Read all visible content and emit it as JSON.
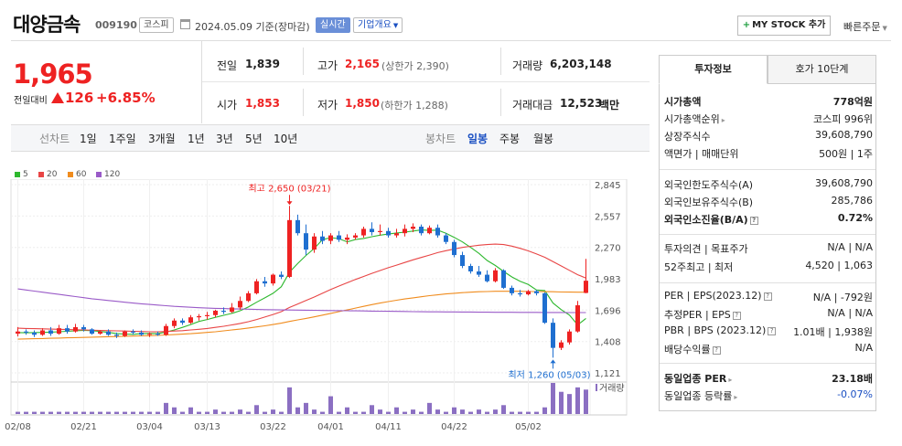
{
  "header": {
    "name": "대양금속",
    "code": "009190",
    "market": "코스피",
    "date": "2024.05.09 기준(장마감)",
    "realtime": "실시간",
    "company_info": "기업개요",
    "mystock": "MY STOCK 추가",
    "quick_order": "빠른주문"
  },
  "quote": {
    "price": "1,965",
    "change_label": "전일대비",
    "change": "126",
    "change_pct": "+6.85%",
    "prev_label": "전일",
    "prev": "1,839",
    "high_label": "고가",
    "high": "2,165",
    "upper_limit": "(상한가 2,390)",
    "volume_label": "거래량",
    "volume": "6,203,148",
    "open_label": "시가",
    "open": "1,853",
    "low_label": "저가",
    "low": "1,850",
    "lower_limit": "(하한가 1,288)",
    "amount_label": "거래대금",
    "amount": "12,523",
    "amount_unit": "백만"
  },
  "periods": {
    "line_label": "선차트",
    "line_items": [
      "1일",
      "1주일",
      "3개월",
      "1년",
      "3년",
      "5년",
      "10년"
    ],
    "candle_label": "봉차트",
    "candle_items": [
      "일봉",
      "주봉",
      "월봉"
    ],
    "selected": "일봉"
  },
  "legend": [
    {
      "name": "5",
      "color": "#2eb82e"
    },
    {
      "name": "20",
      "color": "#e84545"
    },
    {
      "name": "60",
      "color": "#f08c1e"
    },
    {
      "name": "120",
      "color": "#9a5bc8"
    }
  ],
  "chart_data": {
    "type": "candlestick",
    "y_ticks": [
      "2,845",
      "2,557",
      "2,270",
      "1,983",
      "1,696",
      "1,408",
      "1,121"
    ],
    "x_ticks": [
      "02/08",
      "02/21",
      "03/04",
      "03/13",
      "03/22",
      "04/01",
      "04/11",
      "04/22",
      "05/02"
    ],
    "high_annotation": "최고 2,650 (03/21)",
    "low_annotation": "최저 1,260 (05/03)",
    "volume_label": "거래량",
    "ylim": [
      1121,
      2845
    ],
    "candles": [
      [
        1480,
        1540,
        1455,
        1500
      ],
      [
        1500,
        1520,
        1470,
        1490
      ],
      [
        1490,
        1510,
        1450,
        1470
      ],
      [
        1470,
        1530,
        1460,
        1510
      ],
      [
        1510,
        1540,
        1460,
        1480
      ],
      [
        1480,
        1560,
        1470,
        1530
      ],
      [
        1530,
        1560,
        1480,
        1500
      ],
      [
        1500,
        1570,
        1490,
        1540
      ],
      [
        1540,
        1560,
        1500,
        1520
      ],
      [
        1520,
        1530,
        1470,
        1480
      ],
      [
        1480,
        1510,
        1470,
        1500
      ],
      [
        1500,
        1520,
        1460,
        1470
      ],
      [
        1470,
        1490,
        1440,
        1460
      ],
      [
        1460,
        1510,
        1450,
        1500
      ],
      [
        1500,
        1520,
        1470,
        1490
      ],
      [
        1490,
        1510,
        1460,
        1470
      ],
      [
        1470,
        1490,
        1450,
        1480
      ],
      [
        1480,
        1500,
        1460,
        1470
      ],
      [
        1470,
        1570,
        1460,
        1550
      ],
      [
        1550,
        1620,
        1530,
        1600
      ],
      [
        1600,
        1620,
        1560,
        1580
      ],
      [
        1580,
        1650,
        1570,
        1630
      ],
      [
        1630,
        1660,
        1600,
        1640
      ],
      [
        1640,
        1680,
        1610,
        1650
      ],
      [
        1650,
        1700,
        1630,
        1690
      ],
      [
        1690,
        1720,
        1660,
        1680
      ],
      [
        1680,
        1760,
        1670,
        1720
      ],
      [
        1720,
        1820,
        1700,
        1780
      ],
      [
        1780,
        1870,
        1770,
        1850
      ],
      [
        1850,
        1980,
        1840,
        1960
      ],
      [
        1960,
        2000,
        1910,
        1940
      ],
      [
        1940,
        2030,
        1920,
        2020
      ],
      [
        2020,
        2050,
        1980,
        2000
      ],
      [
        2000,
        2650,
        1990,
        2520
      ],
      [
        2520,
        2570,
        2380,
        2400
      ],
      [
        2400,
        2480,
        2200,
        2250
      ],
      [
        2250,
        2400,
        2220,
        2370
      ],
      [
        2370,
        2420,
        2300,
        2330
      ],
      [
        2330,
        2400,
        2300,
        2380
      ],
      [
        2380,
        2420,
        2320,
        2340
      ],
      [
        2340,
        2390,
        2300,
        2360
      ],
      [
        2360,
        2400,
        2340,
        2380
      ],
      [
        2380,
        2460,
        2360,
        2440
      ],
      [
        2440,
        2500,
        2380,
        2410
      ],
      [
        2410,
        2480,
        2380,
        2420
      ],
      [
        2420,
        2450,
        2360,
        2380
      ],
      [
        2380,
        2440,
        2360,
        2400
      ],
      [
        2400,
        2480,
        2370,
        2440
      ],
      [
        2440,
        2490,
        2410,
        2460
      ],
      [
        2460,
        2480,
        2380,
        2400
      ],
      [
        2400,
        2470,
        2390,
        2450
      ],
      [
        2450,
        2480,
        2360,
        2380
      ],
      [
        2380,
        2400,
        2300,
        2320
      ],
      [
        2320,
        2340,
        2180,
        2200
      ],
      [
        2200,
        2230,
        2080,
        2100
      ],
      [
        2100,
        2120,
        2030,
        2050
      ],
      [
        2050,
        2100,
        2000,
        2020
      ],
      [
        2020,
        2060,
        1950,
        1960
      ],
      [
        1960,
        2080,
        1950,
        2060
      ],
      [
        2060,
        2070,
        1890,
        1900
      ],
      [
        1900,
        1920,
        1830,
        1850
      ],
      [
        1850,
        1880,
        1820,
        1840
      ],
      [
        1840,
        1880,
        1830,
        1870
      ],
      [
        1870,
        1880,
        1830,
        1850
      ],
      [
        1850,
        1860,
        1570,
        1580
      ],
      [
        1580,
        1620,
        1260,
        1350
      ],
      [
        1350,
        1420,
        1330,
        1400
      ],
      [
        1400,
        1520,
        1380,
        1500
      ],
      [
        1500,
        1780,
        1490,
        1740
      ],
      [
        1853,
        2165,
        1850,
        1965
      ]
    ],
    "ma_series": [
      {
        "name": "5",
        "values": [
          1490,
          1488,
          1490,
          1492,
          1494,
          1498,
          1502,
          1506,
          1510,
          1508,
          1500,
          1492,
          1482,
          1476,
          1474,
          1480,
          1482,
          1480,
          1494,
          1514,
          1538,
          1564,
          1592,
          1610,
          1630,
          1648,
          1666,
          1690,
          1724,
          1768,
          1808,
          1850,
          1910,
          2044,
          2124,
          2196,
          2260,
          2340,
          2360,
          2350,
          2320,
          2342,
          2352,
          2368,
          2382,
          2392,
          2402,
          2410,
          2420,
          2430,
          2426,
          2428,
          2400,
          2362,
          2320,
          2270,
          2216,
          2150,
          2104,
          2050,
          2000,
          1960,
          1930,
          1880,
          1875,
          1760,
          1700,
          1650,
          1560,
          1620
        ]
      },
      {
        "name": "20",
        "values": [
          1530,
          1528,
          1526,
          1524,
          1522,
          1520,
          1518,
          1516,
          1514,
          1512,
          1510,
          1508,
          1506,
          1504,
          1502,
          1500,
          1498,
          1497,
          1500,
          1504,
          1508,
          1514,
          1520,
          1528,
          1538,
          1548,
          1560,
          1574,
          1590,
          1610,
          1632,
          1656,
          1682,
          1720,
          1752,
          1784,
          1816,
          1850,
          1884,
          1916,
          1946,
          1976,
          2004,
          2032,
          2058,
          2084,
          2108,
          2132,
          2156,
          2178,
          2200,
          2222,
          2240,
          2256,
          2270,
          2280,
          2290,
          2296,
          2300,
          2296,
          2282,
          2262,
          2238,
          2210,
          2180,
          2140,
          2100,
          2060,
          2020,
          1990
        ]
      },
      {
        "name": "60",
        "values": [
          1430,
          1432,
          1434,
          1436,
          1438,
          1440,
          1442,
          1444,
          1446,
          1448,
          1450,
          1452,
          1454,
          1456,
          1458,
          1460,
          1462,
          1464,
          1468,
          1472,
          1476,
          1480,
          1486,
          1492,
          1498,
          1506,
          1514,
          1522,
          1532,
          1542,
          1552,
          1564,
          1576,
          1592,
          1606,
          1620,
          1634,
          1650,
          1666,
          1682,
          1698,
          1714,
          1730,
          1746,
          1760,
          1774,
          1786,
          1798,
          1808,
          1818,
          1828,
          1836,
          1844,
          1850,
          1856,
          1860,
          1864,
          1866,
          1868,
          1868,
          1868,
          1868,
          1866,
          1866,
          1865,
          1864,
          1862,
          1861,
          1860,
          1860
        ]
      },
      {
        "name": "120",
        "values": [
          1890,
          1880,
          1870,
          1860,
          1850,
          1840,
          1830,
          1820,
          1810,
          1800,
          1792,
          1784,
          1776,
          1768,
          1760,
          1754,
          1748,
          1742,
          1736,
          1730,
          1726,
          1722,
          1718,
          1714,
          1712,
          1710,
          1708,
          1706,
          1704,
          1702,
          1700,
          1699,
          1698,
          1697,
          1696,
          1695,
          1694,
          1693,
          1692,
          1691,
          1690,
          1689,
          1688,
          1687,
          1686,
          1685,
          1684,
          1683,
          1682,
          1681,
          1680,
          1680,
          1679,
          1679,
          1678,
          1678,
          1677,
          1677,
          1676,
          1676,
          1676,
          1675,
          1675,
          1675,
          1674,
          1674,
          1674,
          1673,
          1673,
          1673
        ]
      }
    ],
    "volumes": [
      1,
      1,
      1,
      1,
      1,
      1,
      1,
      1,
      1,
      1,
      1,
      1,
      1,
      1,
      1,
      1,
      1,
      1,
      5,
      3,
      1,
      3,
      1,
      1,
      2,
      1,
      1,
      2,
      1,
      4,
      1,
      2,
      1,
      12,
      3,
      5,
      2,
      1,
      8,
      1,
      3,
      1,
      1,
      4,
      2,
      1,
      3,
      1,
      2,
      1,
      5,
      2,
      1,
      3,
      2,
      1,
      2,
      1,
      2,
      4,
      1,
      1,
      1,
      1,
      3,
      14,
      10,
      9,
      12,
      11
    ]
  },
  "invest": {
    "tabs": [
      "투자정보",
      "호가 10단계"
    ],
    "rows1": [
      {
        "label": "시가총액",
        "value": "778억원",
        "bold": true
      },
      {
        "label": "시가총액순위",
        "value": "코스피 996위"
      },
      {
        "label": "상장주식수",
        "value": "39,608,790"
      },
      {
        "label": "액면가 | 매매단위",
        "value": "500원 | 1주"
      }
    ],
    "rows2": [
      {
        "label": "외국인한도주식수(A)",
        "value": "39,608,790"
      },
      {
        "label": "외국인보유주식수(B)",
        "value": "285,786"
      },
      {
        "label": "외국인소진율(B/A)",
        "value": "0.72%",
        "bold": true
      }
    ],
    "rows3": [
      {
        "label": "투자의견 | 목표주가",
        "value": "N/A | N/A"
      },
      {
        "label": "52주최고 | 최저",
        "value": "4,520 | 1,063"
      }
    ],
    "rows4": [
      {
        "label": "PER | EPS(2023.12)",
        "value": "N/A | -792원"
      },
      {
        "label": "추정PER | EPS",
        "value": "N/A | N/A"
      },
      {
        "label": "PBR | BPS (2023.12)",
        "value": "1.01배 | 1,938원"
      },
      {
        "label": "배당수익률",
        "value": "N/A"
      }
    ],
    "rows5": [
      {
        "label": "동일업종 PER",
        "value": "23.18배",
        "bold": true
      },
      {
        "label": "동일업종 등락률",
        "value": "-0.07%",
        "blue": true
      }
    ]
  }
}
